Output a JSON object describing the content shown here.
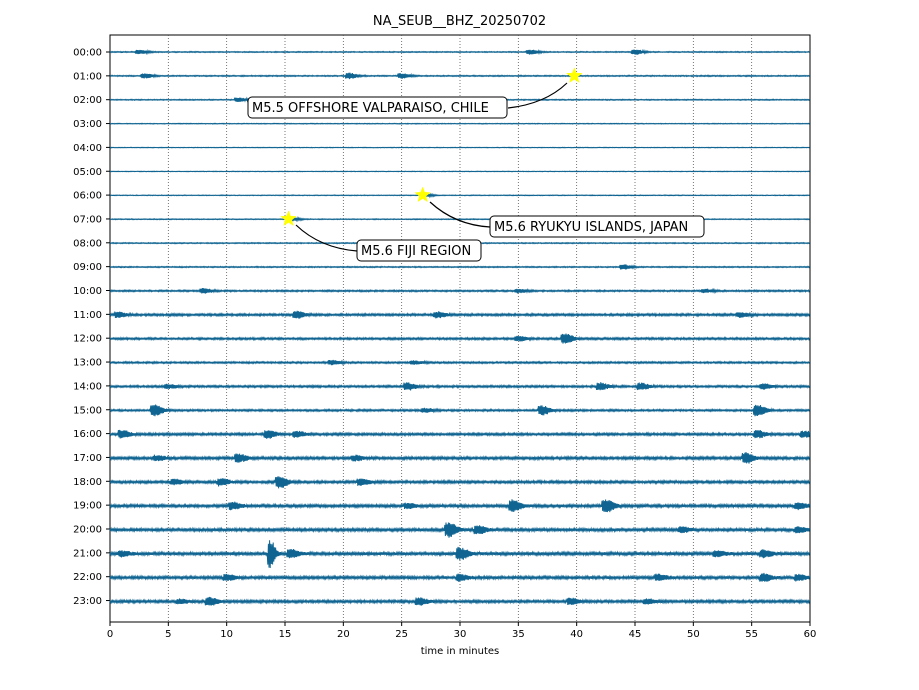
{
  "chart_data": {
    "type": "line",
    "title": "NA_SEUB__BHZ_20250702",
    "xlabel": "time in minutes",
    "ylabel": "",
    "xlim": [
      0,
      60
    ],
    "x_ticks": [
      "0",
      "5",
      "10",
      "15",
      "20",
      "25",
      "30",
      "35",
      "40",
      "45",
      "50",
      "55",
      "60"
    ],
    "x_tick_values": [
      0,
      5,
      10,
      15,
      20,
      25,
      30,
      35,
      40,
      45,
      50,
      55,
      60
    ],
    "grid": "vertical dotted lines at x ticks",
    "trace_color": "#0f6491",
    "marker_color": "#ffff00",
    "rows": [
      "00:00",
      "01:00",
      "02:00",
      "03:00",
      "04:00",
      "05:00",
      "06:00",
      "07:00",
      "08:00",
      "09:00",
      "10:00",
      "11:00",
      "12:00",
      "13:00",
      "14:00",
      "15:00",
      "16:00",
      "17:00",
      "18:00",
      "19:00",
      "20:00",
      "21:00",
      "22:00",
      "23:00"
    ],
    "noise_level": [
      0.35,
      0.4,
      0.35,
      0.25,
      0.2,
      0.2,
      0.25,
      0.3,
      0.35,
      0.4,
      0.55,
      0.75,
      0.7,
      0.6,
      0.7,
      0.65,
      0.8,
      0.9,
      0.85,
      0.95,
      1.0,
      1.05,
      0.95,
      0.9
    ],
    "bursts": [
      {
        "row": 0,
        "x": 2.5,
        "amp": 2.0
      },
      {
        "row": 0,
        "x": 36,
        "amp": 2.2
      },
      {
        "row": 0,
        "x": 45,
        "amp": 2.5
      },
      {
        "row": 1,
        "x": 3,
        "amp": 2.2
      },
      {
        "row": 1,
        "x": 20.5,
        "amp": 3.0
      },
      {
        "row": 1,
        "x": 25,
        "amp": 2.5
      },
      {
        "row": 2,
        "x": 11,
        "amp": 2.0
      },
      {
        "row": 2,
        "x": 15.5,
        "amp": 1.8
      },
      {
        "row": 2,
        "x": 20,
        "amp": 2.0
      },
      {
        "row": 6,
        "x": 27,
        "amp": 1.5
      },
      {
        "row": 7,
        "x": 15.5,
        "amp": 1.8
      },
      {
        "row": 9,
        "x": 44,
        "amp": 2.2
      },
      {
        "row": 10,
        "x": 8,
        "amp": 2.2
      },
      {
        "row": 10,
        "x": 35,
        "amp": 1.8
      },
      {
        "row": 10,
        "x": 51,
        "amp": 1.6
      },
      {
        "row": 11,
        "x": 0.7,
        "amp": 2.5
      },
      {
        "row": 11,
        "x": 16,
        "amp": 3.5
      },
      {
        "row": 11,
        "x": 28,
        "amp": 3.0
      },
      {
        "row": 11,
        "x": 54,
        "amp": 2.2
      },
      {
        "row": 12,
        "x": 39,
        "amp": 5.0
      },
      {
        "row": 12,
        "x": 35,
        "amp": 2.5
      },
      {
        "row": 13,
        "x": 19,
        "amp": 2.0
      },
      {
        "row": 13,
        "x": 26,
        "amp": 1.8
      },
      {
        "row": 14,
        "x": 25.5,
        "amp": 3.5
      },
      {
        "row": 14,
        "x": 42,
        "amp": 3.5
      },
      {
        "row": 14,
        "x": 45.5,
        "amp": 3.2
      },
      {
        "row": 14,
        "x": 56,
        "amp": 2.5
      },
      {
        "row": 14,
        "x": 5,
        "amp": 2.0
      },
      {
        "row": 15,
        "x": 3.8,
        "amp": 5.5
      },
      {
        "row": 15,
        "x": 37,
        "amp": 4.5
      },
      {
        "row": 15,
        "x": 55.5,
        "amp": 5.5
      },
      {
        "row": 15,
        "x": 27,
        "amp": 2.0
      },
      {
        "row": 16,
        "x": 1,
        "amp": 4.0
      },
      {
        "row": 16,
        "x": 13.5,
        "amp": 4.0
      },
      {
        "row": 16,
        "x": 16,
        "amp": 3.0
      },
      {
        "row": 16,
        "x": 55.5,
        "amp": 3.5
      },
      {
        "row": 16,
        "x": 59.5,
        "amp": 3.0
      },
      {
        "row": 17,
        "x": 11,
        "amp": 4.0
      },
      {
        "row": 17,
        "x": 4,
        "amp": 2.5
      },
      {
        "row": 17,
        "x": 54.5,
        "amp": 5.0
      },
      {
        "row": 17,
        "x": 21,
        "amp": 2.5
      },
      {
        "row": 18,
        "x": 9.5,
        "amp": 3.5
      },
      {
        "row": 18,
        "x": 14.5,
        "amp": 6.0
      },
      {
        "row": 18,
        "x": 21.5,
        "amp": 3.5
      },
      {
        "row": 18,
        "x": 5.5,
        "amp": 2.5
      },
      {
        "row": 19,
        "x": 10.5,
        "amp": 3.5
      },
      {
        "row": 19,
        "x": 34.5,
        "amp": 6.0
      },
      {
        "row": 19,
        "x": 42.5,
        "amp": 6.0
      },
      {
        "row": 19,
        "x": 59,
        "amp": 3.0
      },
      {
        "row": 19,
        "x": 25.5,
        "amp": 2.5
      },
      {
        "row": 20,
        "x": 29,
        "amp": 7.0
      },
      {
        "row": 20,
        "x": 31.5,
        "amp": 4.0
      },
      {
        "row": 20,
        "x": 49,
        "amp": 2.5
      },
      {
        "row": 20,
        "x": 59,
        "amp": 2.5
      },
      {
        "row": 21,
        "x": 13.7,
        "amp": 14.0
      },
      {
        "row": 21,
        "x": 15.5,
        "amp": 4.0
      },
      {
        "row": 21,
        "x": 30,
        "amp": 6.0
      },
      {
        "row": 21,
        "x": 52,
        "amp": 2.5
      },
      {
        "row": 21,
        "x": 56,
        "amp": 3.5
      },
      {
        "row": 21,
        "x": 1,
        "amp": 2.5
      },
      {
        "row": 22,
        "x": 10,
        "amp": 3.0
      },
      {
        "row": 22,
        "x": 30,
        "amp": 3.0
      },
      {
        "row": 22,
        "x": 47,
        "amp": 3.0
      },
      {
        "row": 22,
        "x": 56,
        "amp": 3.5
      },
      {
        "row": 22,
        "x": 59,
        "amp": 3.0
      },
      {
        "row": 23,
        "x": 8.5,
        "amp": 4.0
      },
      {
        "row": 23,
        "x": 26.5,
        "amp": 3.5
      },
      {
        "row": 23,
        "x": 39.5,
        "amp": 3.0
      },
      {
        "row": 23,
        "x": 46,
        "amp": 2.5
      },
      {
        "row": 23,
        "x": 6,
        "amp": 2.0
      }
    ],
    "events": [
      {
        "label": "M5.5 OFFSHORE VALPARAISO, CHILE",
        "row": 1,
        "x": 39.8
      },
      {
        "label": "M5.6 RYUKYU ISLANDS, JAPAN",
        "row": 6,
        "x": 26.8
      },
      {
        "label": "M5.6 FIJI REGION",
        "row": 7,
        "x": 15.3
      }
    ]
  }
}
